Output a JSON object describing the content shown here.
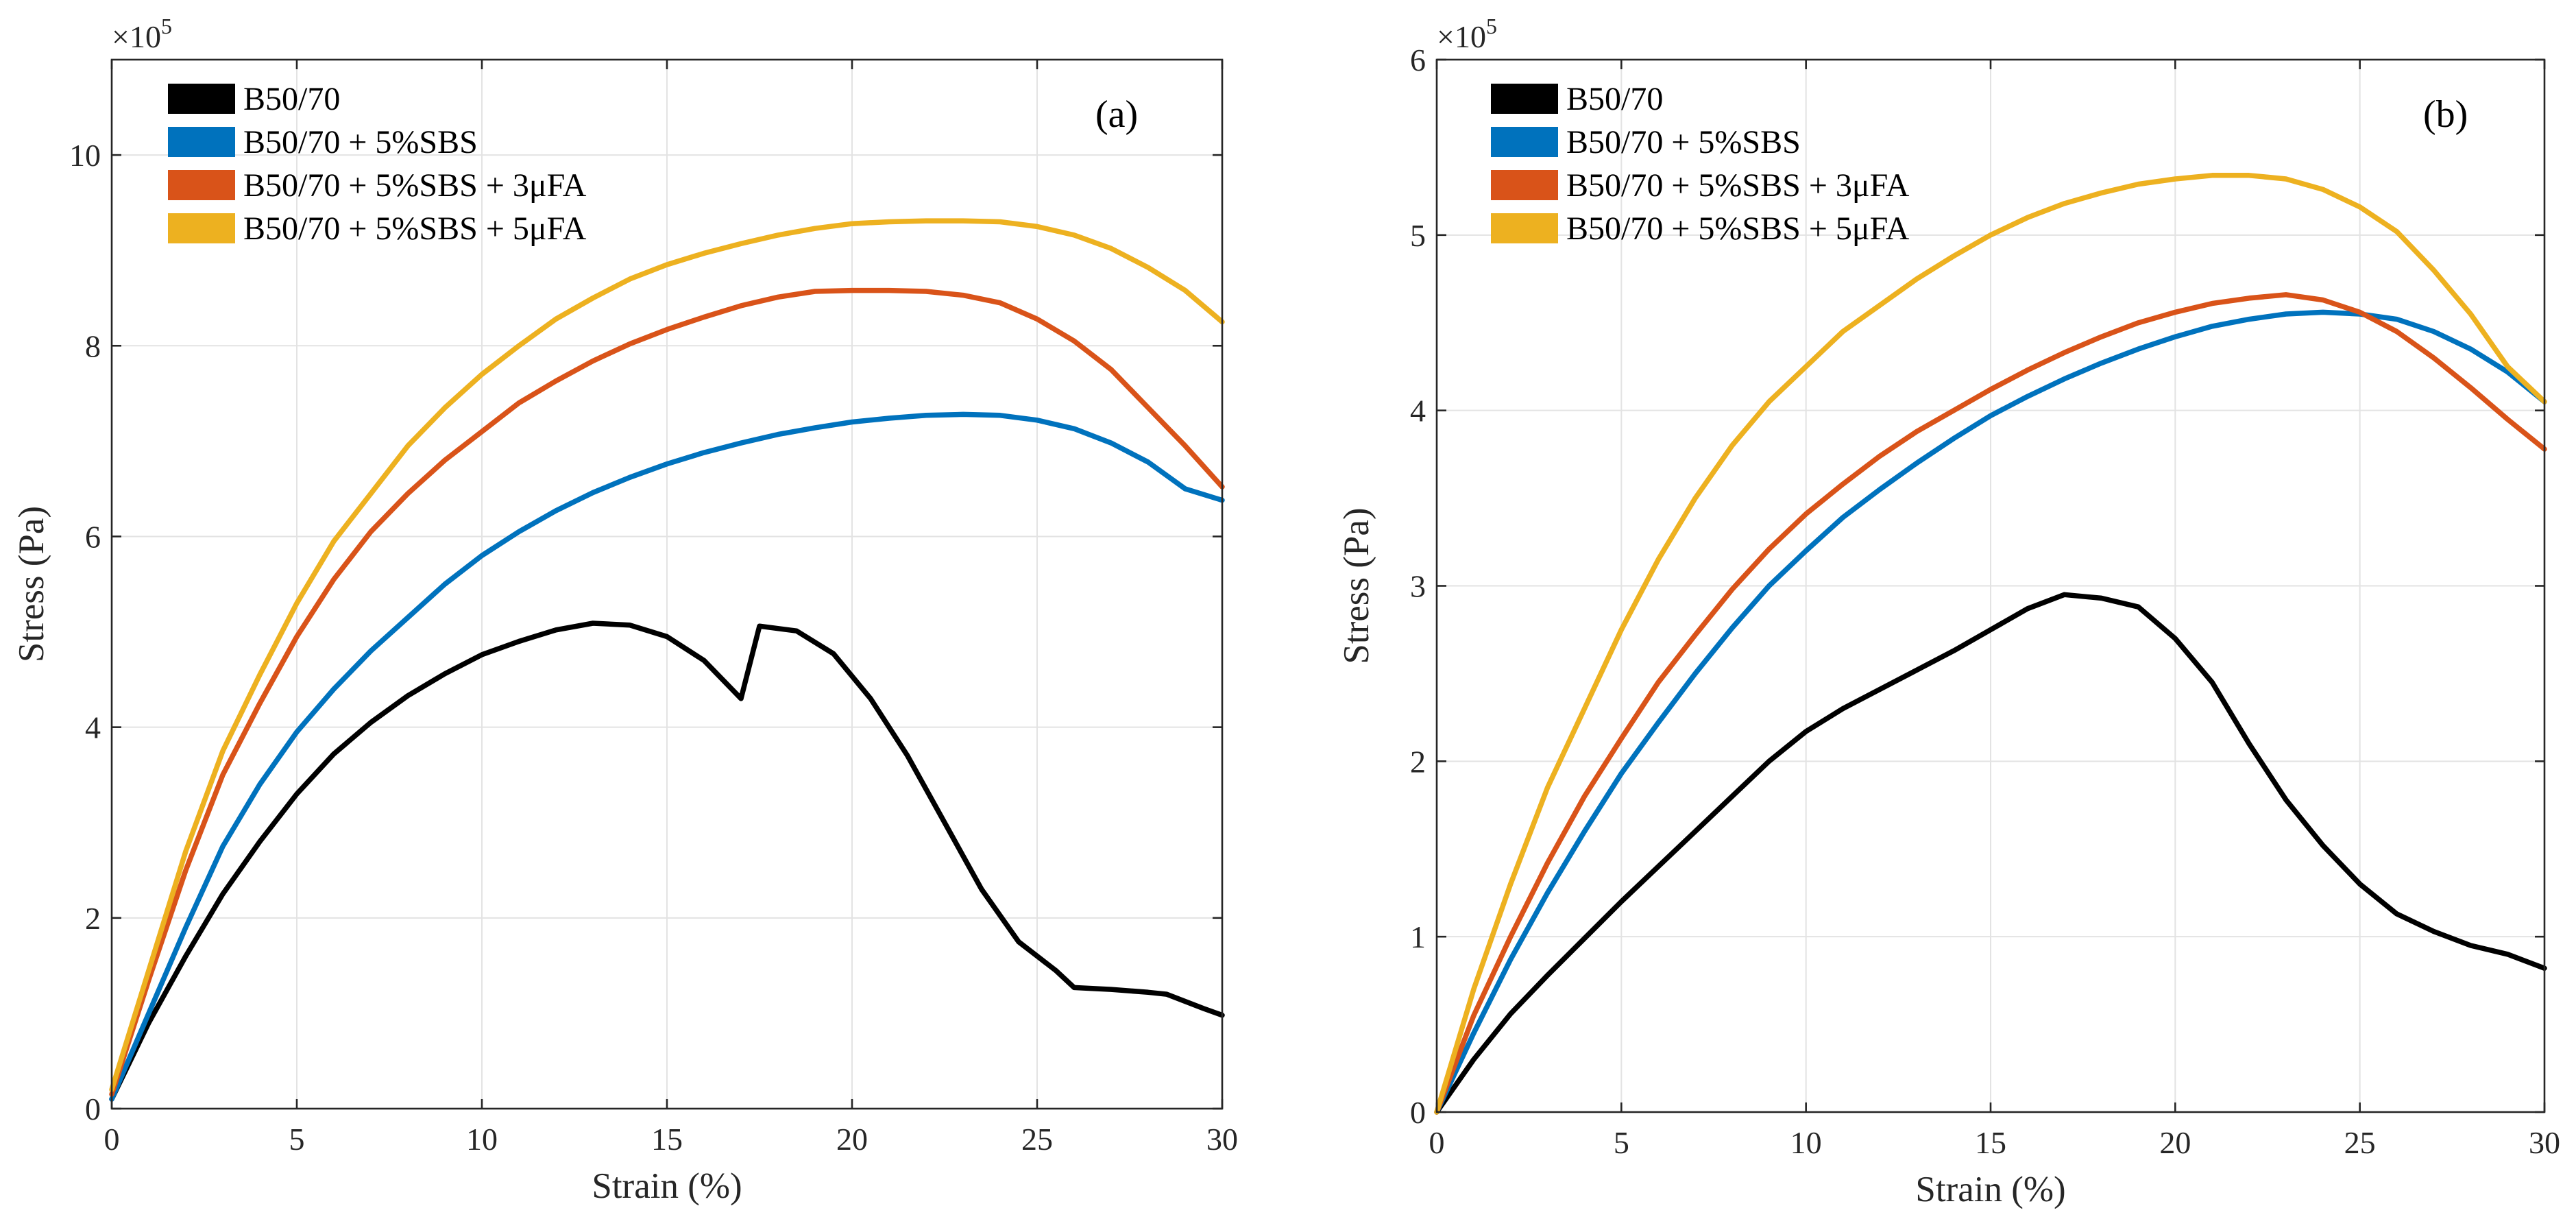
{
  "chart_data": [
    {
      "type": "line",
      "title": "",
      "panel_label": "(a)",
      "xlabel": "Strain (%)",
      "ylabel": "Stress (Pa)",
      "y_exponent_base": "×10",
      "y_exponent_power": "5",
      "xlim": [
        0,
        30
      ],
      "ylim": [
        0,
        11
      ],
      "xticks": [
        0,
        5,
        10,
        15,
        20,
        25,
        30
      ],
      "yticks": [
        0,
        2,
        4,
        6,
        8,
        10
      ],
      "grid": true,
      "legend_position": "top-left",
      "series": [
        {
          "name": "B50/70",
          "color": "#000000",
          "x": [
            0,
            1,
            2,
            3,
            4,
            5,
            6,
            7,
            8,
            9,
            10,
            11,
            12,
            13,
            14,
            15,
            16,
            17,
            17.5,
            18.5,
            19.5,
            20.5,
            21.5,
            22.5,
            23.5,
            24.5,
            25.5,
            26,
            27,
            28,
            28.5,
            29.5,
            30
          ],
          "y": [
            0.1,
            0.9,
            1.6,
            2.25,
            2.8,
            3.3,
            3.72,
            4.05,
            4.33,
            4.56,
            4.76,
            4.9,
            5.02,
            5.09,
            5.07,
            4.95,
            4.7,
            4.3,
            5.06,
            5.01,
            4.77,
            4.3,
            3.7,
            3.0,
            2.3,
            1.75,
            1.45,
            1.27,
            1.25,
            1.22,
            1.2,
            1.05,
            0.98
          ]
        },
        {
          "name": "B50/70 + 5%SBS",
          "color": "#0072BD",
          "x": [
            0,
            1,
            2,
            3,
            4,
            5,
            6,
            7,
            8,
            9,
            10,
            11,
            12,
            13,
            14,
            15,
            16,
            17,
            18,
            19,
            20,
            21,
            22,
            23,
            24,
            25,
            26,
            27,
            28,
            29,
            30
          ],
          "y": [
            0.1,
            1.0,
            1.9,
            2.75,
            3.4,
            3.95,
            4.4,
            4.8,
            5.15,
            5.5,
            5.8,
            6.05,
            6.27,
            6.46,
            6.62,
            6.76,
            6.88,
            6.98,
            7.07,
            7.14,
            7.2,
            7.24,
            7.27,
            7.28,
            7.27,
            7.22,
            7.13,
            6.98,
            6.78,
            6.5,
            6.38
          ]
        },
        {
          "name": "B50/70 + 5%SBS + 3μFA",
          "color": "#D95319",
          "x": [
            0,
            1,
            2,
            3,
            4,
            5,
            6,
            7,
            8,
            9,
            10,
            11,
            12,
            13,
            14,
            15,
            16,
            17,
            18,
            19,
            20,
            21,
            22,
            23,
            24,
            25,
            26,
            27,
            28,
            29,
            30
          ],
          "y": [
            0.15,
            1.35,
            2.5,
            3.5,
            4.25,
            4.95,
            5.55,
            6.05,
            6.45,
            6.8,
            7.1,
            7.4,
            7.63,
            7.84,
            8.02,
            8.17,
            8.3,
            8.42,
            8.51,
            8.57,
            8.58,
            8.58,
            8.57,
            8.53,
            8.45,
            8.28,
            8.05,
            7.75,
            7.35,
            6.95,
            6.52
          ]
        },
        {
          "name": "B50/70 + 5%SBS + 5μFA",
          "color": "#EDB120",
          "x": [
            0,
            1,
            2,
            3,
            4,
            5,
            6,
            7,
            8,
            9,
            10,
            11,
            12,
            13,
            14,
            15,
            16,
            17,
            18,
            19,
            20,
            21,
            22,
            23,
            24,
            25,
            26,
            27,
            28,
            29,
            30
          ],
          "y": [
            0.2,
            1.45,
            2.7,
            3.75,
            4.55,
            5.3,
            5.95,
            6.45,
            6.95,
            7.35,
            7.7,
            8.0,
            8.28,
            8.5,
            8.7,
            8.85,
            8.97,
            9.07,
            9.16,
            9.23,
            9.28,
            9.3,
            9.31,
            9.31,
            9.3,
            9.25,
            9.16,
            9.02,
            8.82,
            8.58,
            8.25
          ]
        }
      ]
    },
    {
      "type": "line",
      "title": "",
      "panel_label": "(b)",
      "xlabel": "Strain (%)",
      "ylabel": "Stress (Pa)",
      "y_exponent_base": "×10",
      "y_exponent_power": "5",
      "xlim": [
        0,
        30
      ],
      "ylim": [
        0,
        6
      ],
      "xticks": [
        0,
        5,
        10,
        15,
        20,
        25,
        30
      ],
      "yticks": [
        0,
        1,
        2,
        3,
        4,
        5,
        6
      ],
      "grid": true,
      "legend_position": "top-left",
      "series": [
        {
          "name": "B50/70",
          "color": "#000000",
          "x": [
            0,
            1,
            2,
            3,
            4,
            5,
            6,
            7,
            8,
            9,
            10,
            11,
            12,
            13,
            14,
            15,
            16,
            17,
            18,
            19,
            20,
            21,
            22,
            23,
            24,
            25,
            26,
            27,
            28,
            29,
            30
          ],
          "y": [
            0,
            0.3,
            0.56,
            0.78,
            0.99,
            1.2,
            1.4,
            1.6,
            1.8,
            2.0,
            2.17,
            2.3,
            2.41,
            2.52,
            2.63,
            2.75,
            2.87,
            2.95,
            2.93,
            2.88,
            2.7,
            2.45,
            2.1,
            1.78,
            1.52,
            1.3,
            1.13,
            1.03,
            0.95,
            0.9,
            0.82
          ]
        },
        {
          "name": "B50/70 + 5%SBS",
          "color": "#0072BD",
          "x": [
            0,
            1,
            2,
            3,
            4,
            5,
            6,
            7,
            8,
            9,
            10,
            11,
            12,
            13,
            14,
            15,
            16,
            17,
            18,
            19,
            20,
            21,
            22,
            23,
            24,
            25,
            26,
            27,
            28,
            29,
            30
          ],
          "y": [
            0,
            0.45,
            0.87,
            1.25,
            1.6,
            1.93,
            2.22,
            2.5,
            2.76,
            3.0,
            3.2,
            3.39,
            3.55,
            3.7,
            3.84,
            3.97,
            4.08,
            4.18,
            4.27,
            4.35,
            4.42,
            4.48,
            4.52,
            4.55,
            4.56,
            4.55,
            4.52,
            4.45,
            4.35,
            4.22,
            4.05
          ]
        },
        {
          "name": "B50/70 + 5%SBS + 3μFA",
          "color": "#D95319",
          "x": [
            0,
            1,
            2,
            3,
            4,
            5,
            6,
            7,
            8,
            9,
            10,
            11,
            12,
            13,
            14,
            15,
            16,
            17,
            18,
            19,
            20,
            21,
            22,
            23,
            24,
            25,
            26,
            27,
            28,
            29,
            30
          ],
          "y": [
            0,
            0.55,
            1.0,
            1.42,
            1.8,
            2.13,
            2.45,
            2.72,
            2.98,
            3.21,
            3.41,
            3.58,
            3.74,
            3.88,
            4.0,
            4.12,
            4.23,
            4.33,
            4.42,
            4.5,
            4.56,
            4.61,
            4.64,
            4.66,
            4.63,
            4.56,
            4.45,
            4.3,
            4.13,
            3.95,
            3.78
          ]
        },
        {
          "name": "B50/70 + 5%SBS + 5μFA",
          "color": "#EDB120",
          "x": [
            0,
            1,
            2,
            3,
            4,
            5,
            6,
            7,
            8,
            9,
            10,
            11,
            12,
            13,
            14,
            15,
            16,
            17,
            18,
            19,
            20,
            21,
            22,
            23,
            24,
            25,
            26,
            27,
            28,
            29,
            30
          ],
          "y": [
            0,
            0.7,
            1.3,
            1.85,
            2.3,
            2.75,
            3.15,
            3.5,
            3.8,
            4.05,
            4.25,
            4.45,
            4.6,
            4.75,
            4.88,
            5.0,
            5.1,
            5.18,
            5.24,
            5.29,
            5.32,
            5.34,
            5.34,
            5.32,
            5.26,
            5.16,
            5.02,
            4.8,
            4.55,
            4.25,
            4.05
          ]
        }
      ]
    }
  ]
}
